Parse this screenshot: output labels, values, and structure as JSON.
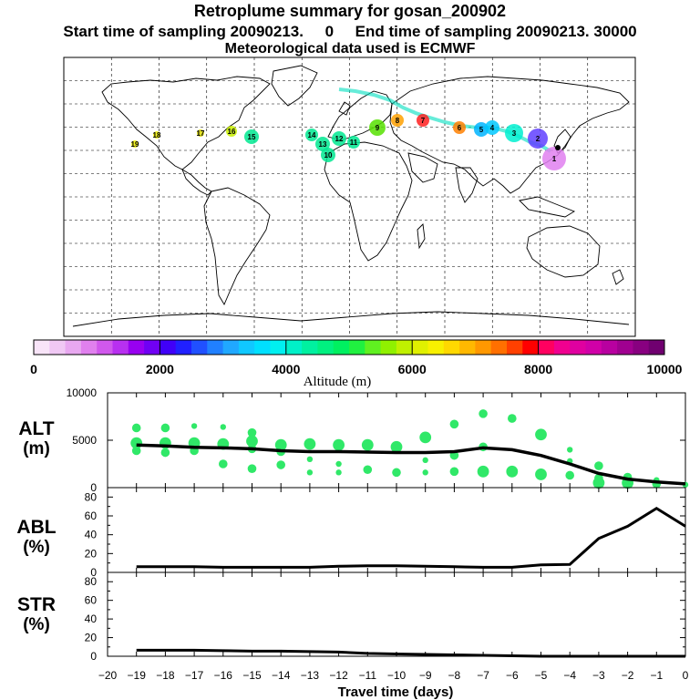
{
  "header": {
    "title": "Retroplume summary for gosan_200902",
    "sampling_line": "Start time of sampling 20090213.     0     End time of sampling 20090213. 30000",
    "met_line": "Meteorological data used is ECMWF"
  },
  "map": {
    "receptor": "gosan",
    "trajectory_labels": [
      {
        "label": "19",
        "color": "#f2f200"
      },
      {
        "label": "18",
        "color": "#f2f200"
      },
      {
        "label": "17",
        "color": "#dcdc00"
      },
      {
        "label": "16",
        "color": "#c8f000"
      },
      {
        "label": "15",
        "color": "#00e890"
      },
      {
        "label": "14",
        "color": "#00e890"
      },
      {
        "label": "13",
        "color": "#00e890"
      },
      {
        "label": "12",
        "color": "#00e890"
      },
      {
        "label": "11",
        "color": "#00e890"
      },
      {
        "label": "10",
        "color": "#00e890"
      },
      {
        "label": "9",
        "color": "#56e000"
      },
      {
        "label": "8",
        "color": "#ffa000"
      },
      {
        "label": "7",
        "color": "#ff2020"
      },
      {
        "label": "6",
        "color": "#ff8000"
      },
      {
        "label": "5",
        "color": "#00b4ff"
      },
      {
        "label": "4",
        "color": "#00c8ff"
      },
      {
        "label": "3",
        "color": "#00f0d0"
      },
      {
        "label": "2",
        "color": "#6040ff"
      },
      {
        "label": "1",
        "color": "#e080f0"
      }
    ]
  },
  "colorbar": {
    "colors": [
      "#f8e4f8",
      "#f0c8f4",
      "#e8a8f0",
      "#e080ee",
      "#d058ec",
      "#b830f0",
      "#9800f0",
      "#7000f4",
      "#4000f8",
      "#2020ff",
      "#2050ff",
      "#2080ff",
      "#20a8ff",
      "#10c8ff",
      "#00e0ff",
      "#00f0f0",
      "#00f0c8",
      "#00f0a0",
      "#00f080",
      "#00f060",
      "#20f040",
      "#60f020",
      "#90f000",
      "#c0f000",
      "#e0f000",
      "#f8f000",
      "#ffd800",
      "#ffb800",
      "#ff9800",
      "#ff7000",
      "#ff4000",
      "#ff0000",
      "#ff0060",
      "#f00090",
      "#e000a0",
      "#d000a8",
      "#b800a0",
      "#a00090",
      "#880080",
      "#700070"
    ],
    "tick_labels": [
      "0",
      "2000",
      "4000",
      "6000",
      "8000",
      "10000"
    ],
    "label": "Altitude (m)"
  },
  "panels": {
    "alt": {
      "label_line1": "ALT",
      "label_line2": "(m)",
      "y_ticks": [
        "10000",
        "5000",
        "0"
      ]
    },
    "abl": {
      "label_line1": "ABL",
      "label_line2": "(%)",
      "y_ticks": [
        "80",
        "60",
        "40",
        "20",
        "0"
      ]
    },
    "str": {
      "label_line1": "STR",
      "label_line2": "(%)",
      "y_ticks": [
        "80",
        "60",
        "40",
        "20",
        "0"
      ]
    }
  },
  "x_axis": {
    "label": "Travel time (days)",
    "tick_labels": [
      "−20",
      "−19",
      "−18",
      "−17",
      "−16",
      "−15",
      "−14",
      "−13",
      "−12",
      "−11",
      "−10",
      "−9",
      "−8",
      "−7",
      "−6",
      "−5",
      "−4",
      "−3",
      "−2",
      "−1",
      "0"
    ]
  },
  "chart_data": [
    {
      "type": "scatter",
      "title": "ALT",
      "xlabel": "Travel time (days)",
      "ylabel": "ALT (m)",
      "xlim": [
        -20,
        0
      ],
      "ylim": [
        0,
        10000
      ],
      "point_color": "#30e868",
      "line_color": "#000000",
      "mean_line": {
        "x": [
          -19,
          -18,
          -17,
          -16,
          -15,
          -14,
          -13,
          -12,
          -11,
          -10,
          -9,
          -8,
          -7,
          -6,
          -5,
          -4,
          -3,
          -2,
          -1,
          0
        ],
        "y": [
          4500,
          4400,
          4250,
          4200,
          4100,
          3900,
          3800,
          3800,
          3750,
          3700,
          3700,
          3800,
          4200,
          4000,
          3400,
          2500,
          1500,
          900,
          600,
          400
        ]
      },
      "clusters": [
        {
          "x": -19,
          "y": 6300,
          "size": 2
        },
        {
          "x": -19,
          "y": 4700,
          "size": 3
        },
        {
          "x": -19,
          "y": 3900,
          "size": 2
        },
        {
          "x": -18,
          "y": 6300,
          "size": 2
        },
        {
          "x": -18,
          "y": 4700,
          "size": 3
        },
        {
          "x": -18,
          "y": 3700,
          "size": 2
        },
        {
          "x": -17,
          "y": 6500,
          "size": 1
        },
        {
          "x": -17,
          "y": 4700,
          "size": 3
        },
        {
          "x": -17,
          "y": 3900,
          "size": 2
        },
        {
          "x": -16,
          "y": 6400,
          "size": 1
        },
        {
          "x": -16,
          "y": 4600,
          "size": 3
        },
        {
          "x": -16,
          "y": 2500,
          "size": 2
        },
        {
          "x": -15,
          "y": 5800,
          "size": 2
        },
        {
          "x": -15,
          "y": 4900,
          "size": 3
        },
        {
          "x": -15,
          "y": 4100,
          "size": 2
        },
        {
          "x": -15,
          "y": 2000,
          "size": 2
        },
        {
          "x": -14,
          "y": 4500,
          "size": 3
        },
        {
          "x": -14,
          "y": 3800,
          "size": 2
        },
        {
          "x": -14,
          "y": 2400,
          "size": 2
        },
        {
          "x": -13,
          "y": 4600,
          "size": 3
        },
        {
          "x": -13,
          "y": 3000,
          "size": 1
        },
        {
          "x": -13,
          "y": 1600,
          "size": 1
        },
        {
          "x": -12,
          "y": 4500,
          "size": 3
        },
        {
          "x": -12,
          "y": 2500,
          "size": 1
        },
        {
          "x": -12,
          "y": 1600,
          "size": 1
        },
        {
          "x": -11,
          "y": 4500,
          "size": 3
        },
        {
          "x": -11,
          "y": 1900,
          "size": 2
        },
        {
          "x": -10,
          "y": 4300,
          "size": 3
        },
        {
          "x": -10,
          "y": 1600,
          "size": 2
        },
        {
          "x": -9,
          "y": 5300,
          "size": 3
        },
        {
          "x": -9,
          "y": 2900,
          "size": 1
        },
        {
          "x": -9,
          "y": 1600,
          "size": 1
        },
        {
          "x": -8,
          "y": 6700,
          "size": 2
        },
        {
          "x": -8,
          "y": 3400,
          "size": 2
        },
        {
          "x": -8,
          "y": 1700,
          "size": 2
        },
        {
          "x": -7,
          "y": 7800,
          "size": 2
        },
        {
          "x": -7,
          "y": 4300,
          "size": 2
        },
        {
          "x": -7,
          "y": 1700,
          "size": 3
        },
        {
          "x": -6,
          "y": 7300,
          "size": 2
        },
        {
          "x": -6,
          "y": 1700,
          "size": 3
        },
        {
          "x": -5,
          "y": 5600,
          "size": 3
        },
        {
          "x": -5,
          "y": 1400,
          "size": 3
        },
        {
          "x": -4,
          "y": 4000,
          "size": 1
        },
        {
          "x": -4,
          "y": 2800,
          "size": 1
        },
        {
          "x": -4,
          "y": 1300,
          "size": 2
        },
        {
          "x": -3,
          "y": 2300,
          "size": 2
        },
        {
          "x": -3,
          "y": 1000,
          "size": 2
        },
        {
          "x": -3,
          "y": 500,
          "size": 3
        },
        {
          "x": -2,
          "y": 1100,
          "size": 2
        },
        {
          "x": -2,
          "y": 500,
          "size": 3
        },
        {
          "x": -1,
          "y": 800,
          "size": 1
        },
        {
          "x": -1,
          "y": 400,
          "size": 2
        },
        {
          "x": 0,
          "y": 300,
          "size": 1
        }
      ]
    },
    {
      "type": "line",
      "title": "ABL",
      "xlabel": "Travel time (days)",
      "ylabel": "ABL (%)",
      "xlim": [
        -20,
        0
      ],
      "ylim": [
        0,
        90
      ],
      "x": [
        -19,
        -18,
        -17,
        -16,
        -15,
        -14,
        -13,
        -12,
        -11,
        -10,
        -9,
        -8,
        -7,
        -6,
        -5,
        -4,
        -3,
        -2,
        -1,
        0
      ],
      "values": [
        6,
        6,
        6,
        5.5,
        5.5,
        5.5,
        5.5,
        6.5,
        7,
        7,
        6.5,
        6,
        5.5,
        5.5,
        8,
        8.5,
        36,
        49,
        68,
        49
      ]
    },
    {
      "type": "line",
      "title": "STR",
      "xlabel": "Travel time (days)",
      "ylabel": "STR (%)",
      "xlim": [
        -20,
        0
      ],
      "ylim": [
        0,
        90
      ],
      "x": [
        -19,
        -18,
        -17,
        -16,
        -15,
        -14,
        -13,
        -12,
        -11,
        -10,
        -9,
        -8,
        -7,
        -6,
        -5,
        -4,
        -3,
        -2,
        -1,
        0
      ],
      "values": [
        6.5,
        6.5,
        6.5,
        6,
        5.5,
        5.5,
        5,
        4.5,
        3,
        2.5,
        2,
        1.5,
        1,
        0.5,
        0,
        0,
        0,
        0,
        0,
        0
      ]
    }
  ]
}
